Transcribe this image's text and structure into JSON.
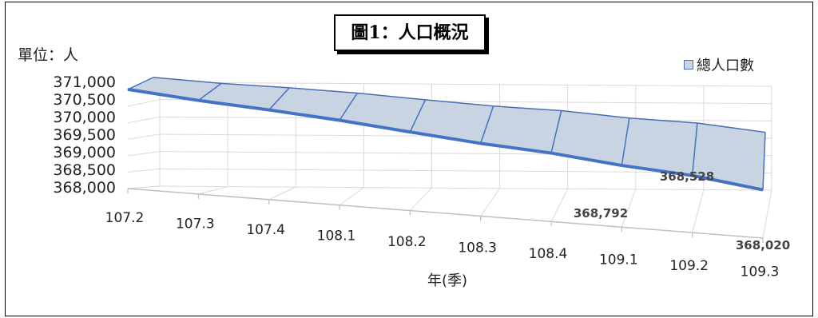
{
  "chart_data": {
    "type": "area",
    "title": "圖1：人口概況",
    "unit_label": "單位：人",
    "xlabel": "年(季)",
    "ylabel": "",
    "categories": [
      "107.2",
      "107.3",
      "107.4",
      "108.1",
      "108.2",
      "108.3",
      "108.4",
      "109.1",
      "109.2",
      "109.3"
    ],
    "series": [
      {
        "name": "總人口數",
        "values": [
          370960,
          370640,
          370410,
          370130,
          369770,
          369430,
          369190,
          368792,
          368528,
          368020
        ],
        "color": "#4472c4",
        "fill": "#c9d4e3"
      }
    ],
    "data_labels": [
      {
        "index": 7,
        "text": "368,792"
      },
      {
        "index": 8,
        "text": "368,528"
      },
      {
        "index": 9,
        "text": "368,020"
      }
    ],
    "ylim": [
      368000,
      371000
    ],
    "yticks": [
      "368,000",
      "368,500",
      "369,000",
      "369,500",
      "370,000",
      "370,500",
      "371,000"
    ],
    "legend": "top-right",
    "grid": true,
    "chart_style": "3d-perspective"
  }
}
